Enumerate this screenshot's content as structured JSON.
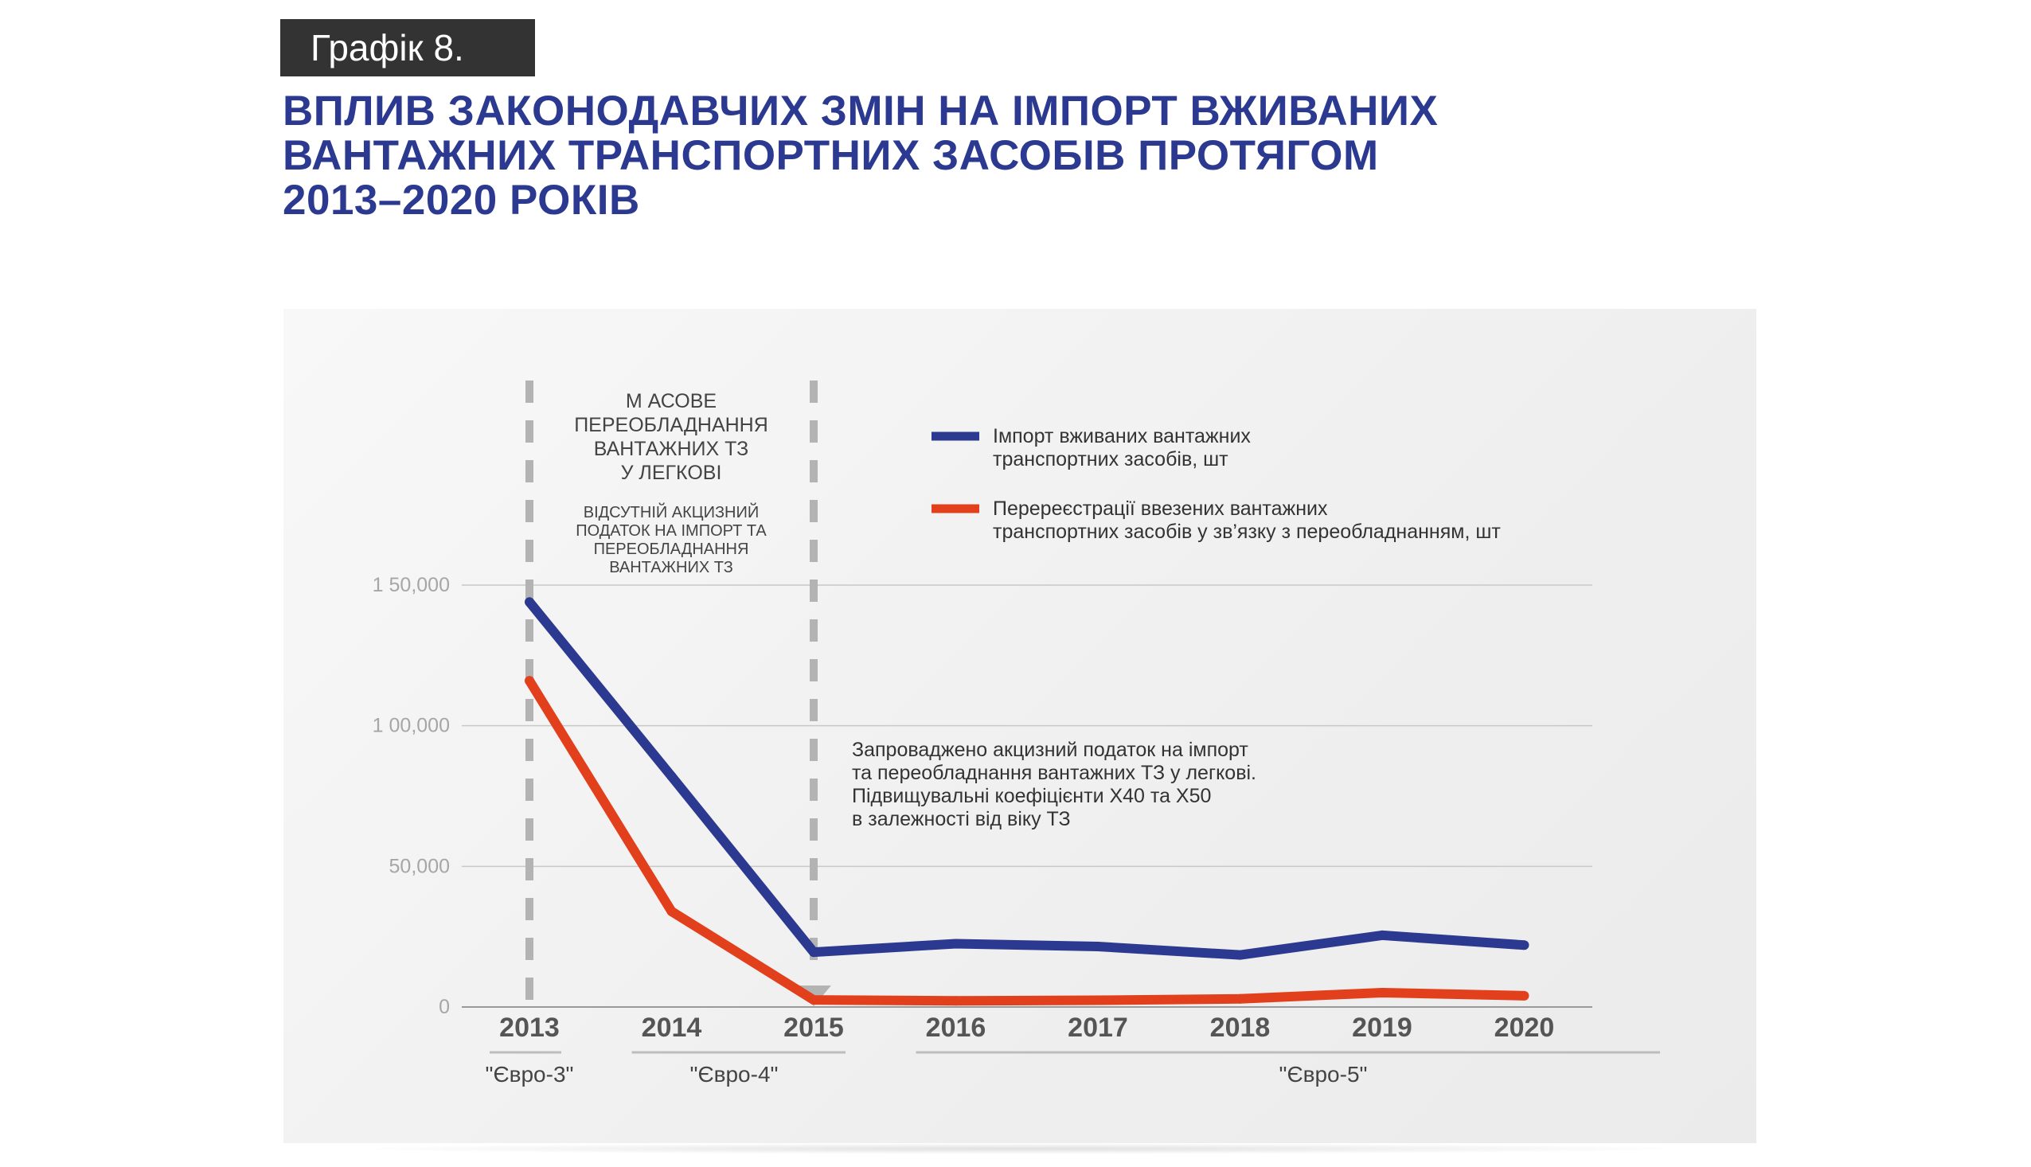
{
  "badge": "Графік 8.",
  "title": {
    "line1": "ВПЛИВ ЗАКОНОДАВЧИХ ЗМІН НА ІМПОРТ ВЖИВАНИХ",
    "line2": "ВАНТАЖНИХ ТРАНСПОРТНИХ ЗАСОБІВ ПРОТЯГОМ",
    "line3": "2013–2020 РОКІВ"
  },
  "annotations": {
    "period_heading": [
      "М АСОВЕ",
      "ПЕРЕОБЛАДНАННЯ",
      "ВАНТАЖНИХ ТЗ",
      "У ЛЕГКОВІ"
    ],
    "period_sub": [
      "ВІДСУТНІЙ АКЦИЗНИЙ",
      "ПОДАТОК НА ІМПОРТ ТА",
      "ПЕРЕОБЛАДНАННЯ",
      "ВАНТАЖНИХ ТЗ"
    ],
    "tax_note": [
      "Запроваджено акцизний податок на імпорт",
      "та переобладнання вантажних  ТЗ у легкові.",
      "Підвищувальні коефіцієнти X40 та X50",
      "в залежності від віку ТЗ"
    ]
  },
  "legend": [
    {
      "lines": [
        "Імпорт вживаних вантажних",
        "транспортних засобів, шт"
      ],
      "color": "#2b3990"
    },
    {
      "lines": [
        "Перереєстрації ввезених вантажних",
        "транспортних засобів у зв’язку з переобладнанням, шт"
      ],
      "color": "#e2401c"
    }
  ],
  "euro": [
    {
      "label": "\"Євро-3\"",
      "from": 2013,
      "to": 2013
    },
    {
      "label": "\"Євро-4\"",
      "from": 2014,
      "to": 2015
    },
    {
      "label": "\"Євро-5\"",
      "from": 2016,
      "to": 2020
    }
  ],
  "colors": {
    "blue": "#2b3990",
    "red": "#e2401c",
    "grid": "#c8c8c8",
    "dash": "#b3b3b3",
    "axis_text": "#a6a6a6"
  },
  "chart_data": {
    "type": "line",
    "x": [
      2013,
      2014,
      2015,
      2016,
      2017,
      2018,
      2019,
      2020
    ],
    "ylim": [
      0,
      150000
    ],
    "yticks": [
      0,
      50000,
      100000,
      150000
    ],
    "ytick_labels": [
      "0",
      "50,000",
      "1 00,000",
      "1 50,000"
    ],
    "grid": true,
    "legend_position": "top-right",
    "series": [
      {
        "name": "Імпорт вживаних вантажних транспортних засобів, шт",
        "color": "#2b3990",
        "values": [
          144000,
          82000,
          19500,
          22500,
          21500,
          18500,
          25500,
          22000
        ]
      },
      {
        "name": "Перереєстрації ввезених вантажних транспортних засобів у зв’язку з переобладнанням, шт",
        "color": "#e2401c",
        "values": [
          116000,
          34000,
          2500,
          2200,
          2400,
          2900,
          5100,
          4000
        ]
      }
    ]
  }
}
